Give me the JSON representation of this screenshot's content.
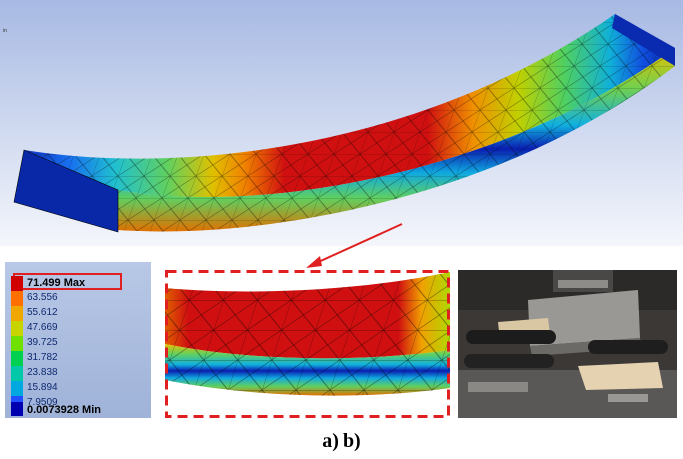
{
  "fea_panel": {
    "corner_text": "in"
  },
  "legend": {
    "entries": [
      {
        "label": "71.499 Max",
        "color": "#d00000",
        "emphasis": true
      },
      {
        "label": "63.556",
        "color": "#ff7000"
      },
      {
        "label": "55.612",
        "color": "#f0a800"
      },
      {
        "label": "47.669",
        "color": "#c8d400"
      },
      {
        "label": "39.725",
        "color": "#70e000"
      },
      {
        "label": "31.782",
        "color": "#00d050"
      },
      {
        "label": "23.838",
        "color": "#00c8a8"
      },
      {
        "label": "15.894",
        "color": "#00a8e0"
      },
      {
        "label": "7.9509",
        "color": "#2050ff"
      },
      {
        "label": "0.0073928 Min",
        "color": "#0000b0",
        "emphasis": true
      }
    ],
    "highlight_color": "#e02020"
  },
  "caption": {
    "part_a": "a)",
    "part_b": "b)"
  },
  "colors": {
    "highlight": "#e02020",
    "background_sky": "#b4c6ea",
    "stress_max": "#d00000",
    "stress_min": "#0000b0"
  }
}
